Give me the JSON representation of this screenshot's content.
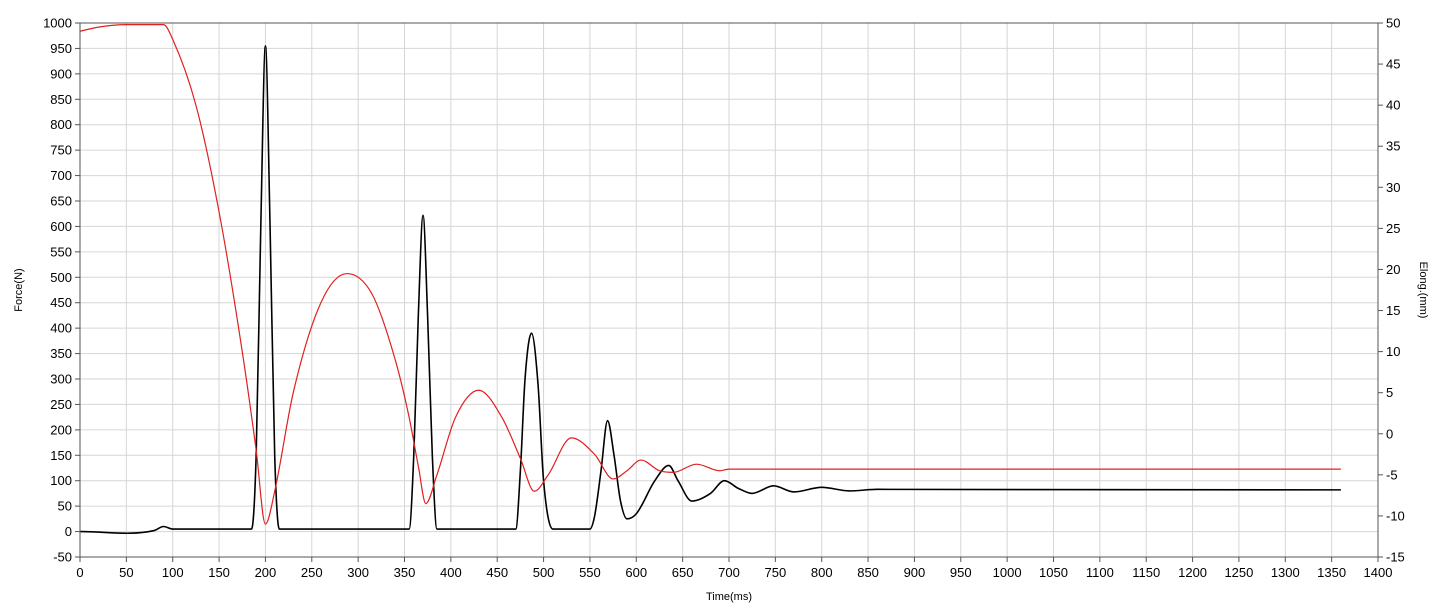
{
  "chart_data": {
    "type": "line",
    "title": "",
    "xlabel": "Time(ms)",
    "ylabel_left": "Force(N)",
    "ylabel_right": "Elong.(mm)",
    "xlim": [
      0,
      1400
    ],
    "ylim_left": [
      -50,
      1000
    ],
    "ylim_right": [
      -15,
      50
    ],
    "x_ticks": [
      "0",
      "50",
      "100",
      "150",
      "200",
      "250",
      "300",
      "350",
      "400",
      "450",
      "500",
      "550",
      "600",
      "650",
      "700",
      "750",
      "800",
      "850",
      "900",
      "950",
      "1000",
      "1050",
      "1100",
      "1150",
      "1200",
      "1250",
      "1300",
      "1350",
      "1400"
    ],
    "y_left_ticks": [
      "1000",
      "950",
      "900",
      "850",
      "800",
      "750",
      "700",
      "650",
      "600",
      "550",
      "500",
      "450",
      "400",
      "350",
      "300",
      "250",
      "200",
      "150",
      "100",
      "50",
      "0",
      "-50"
    ],
    "y_right_ticks": [
      "50",
      "45",
      "40",
      "35",
      "30",
      "25",
      "20",
      "15",
      "10",
      "5",
      "0",
      "-5",
      "-10",
      "-15"
    ],
    "grid": true,
    "series": [
      {
        "axis": "left",
        "color": "#000000",
        "x": [
          0,
          80,
          90,
          100,
          185,
          190,
          195,
          200,
          205,
          210,
          215,
          355,
          360,
          365,
          370,
          375,
          380,
          385,
          470,
          475,
          480,
          487,
          494,
          500,
          510,
          550,
          555,
          562,
          569,
          576,
          583,
          590,
          600,
          620,
          635,
          645,
          660,
          680,
          695,
          710,
          725,
          748,
          770,
          800,
          830,
          860,
          1360
        ],
        "y": [
          0,
          2,
          10,
          5,
          5,
          150,
          600,
          955,
          600,
          150,
          5,
          5,
          150,
          430,
          622,
          420,
          150,
          5,
          5,
          120,
          300,
          390,
          290,
          100,
          5,
          5,
          30,
          120,
          218,
          150,
          60,
          25,
          35,
          100,
          130,
          100,
          60,
          75,
          100,
          85,
          75,
          90,
          78,
          87,
          80,
          83,
          82
        ]
      },
      {
        "axis": "right",
        "color": "#e0201f",
        "x": [
          0,
          20,
          50,
          90,
          100,
          125,
          150,
          175,
          190,
          200,
          210,
          230,
          260,
          288,
          315,
          340,
          355,
          365,
          373,
          385,
          405,
          430,
          455,
          475,
          490,
          505,
          530,
          555,
          575,
          590,
          605,
          625,
          640,
          665,
          690,
          700,
          1360
        ],
        "y": [
          49,
          49.5,
          49.8,
          49.8,
          48,
          40,
          27,
          10,
          -2,
          -11,
          -7,
          5,
          16,
          19.5,
          17,
          9,
          2,
          -4,
          -8.5,
          -5,
          2,
          5.3,
          2,
          -3,
          -7,
          -5,
          -0.5,
          -2.5,
          -5.5,
          -4.5,
          -3.2,
          -4.5,
          -4.7,
          -3.7,
          -4.5,
          -4.3,
          -4.3
        ]
      }
    ]
  }
}
